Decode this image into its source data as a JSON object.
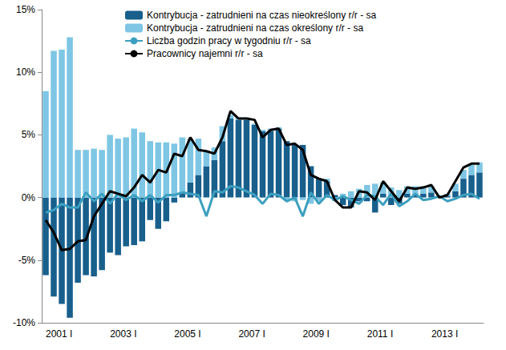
{
  "chart_data": {
    "type": "bar",
    "stacked": true,
    "grid": false,
    "legend": "upper left",
    "categories": [
      "2001 I",
      null,
      null,
      null,
      null,
      null,
      null,
      null,
      "2003 I",
      null,
      null,
      null,
      null,
      null,
      null,
      null,
      "2005 I",
      null,
      null,
      null,
      null,
      null,
      null,
      null,
      "2007 I",
      null,
      null,
      null,
      null,
      null,
      null,
      null,
      "2009 I",
      null,
      null,
      null,
      null,
      null,
      null,
      null,
      "2011 I",
      null,
      null,
      null,
      null,
      null,
      null,
      null,
      "2013 I",
      null,
      null,
      null,
      null,
      null,
      null
    ],
    "ylim": [
      -10,
      15
    ],
    "yticks": [
      {
        "value": -10,
        "label": "-10%"
      },
      {
        "value": -5,
        "label": "-5%"
      },
      {
        "value": 0,
        "label": "0%"
      },
      {
        "value": 5,
        "label": "5%"
      },
      {
        "value": 10,
        "label": "10%"
      },
      {
        "value": 15,
        "label": "15%"
      }
    ],
    "series": [
      {
        "name": "Kontrybucja - zatrudnieni na czas nieokreślony r/r - sa",
        "type": "bar",
        "color": "#185f8c",
        "values": [
          -6.2,
          -7.9,
          -8.5,
          -9.6,
          -6.8,
          -6.2,
          -6.3,
          -5.8,
          -4.4,
          -4.6,
          -3.9,
          -3.8,
          -3.5,
          -1.8,
          -2.5,
          -1.9,
          -0.4,
          0.4,
          1.2,
          1.8,
          2.5,
          3.0,
          4.5,
          6.3,
          6.2,
          6.2,
          5.8,
          5.3,
          5.3,
          5.5,
          4.5,
          4.2,
          4.2,
          2.5,
          1.5,
          1.3,
          0.2,
          -0.6,
          -0.8,
          -0.3,
          -0.3,
          -1.2,
          0.3,
          -0.6,
          -0.5,
          0.3,
          0.2,
          0.3,
          0.4,
          0.0,
          0.1,
          0.5,
          1.5,
          1.8,
          2.0
        ]
      },
      {
        "name": "Kontrybucja - zatrudnieni na czas określony r/r - sa",
        "type": "bar",
        "color": "#7ec6e4",
        "values": [
          8.5,
          11.7,
          11.8,
          12.8,
          3.8,
          3.8,
          3.9,
          3.8,
          5.0,
          4.7,
          4.8,
          5.5,
          5.2,
          4.5,
          4.4,
          4.4,
          4.3,
          4.4,
          3.5,
          2.9,
          1.2,
          1.0,
          1.2,
          0.3,
          0.2,
          0.2,
          0.1,
          0.1,
          0.2,
          0.1,
          -0.2,
          -0.3,
          -0.2,
          -0.5,
          -0.3,
          0.2,
          -0.3,
          0.3,
          0.5,
          0.7,
          1.0,
          1.1,
          0.9,
          0.8,
          0.6,
          0.6,
          0.7,
          0.6,
          0.5,
          0.1,
          0.2,
          0.6,
          0.7,
          0.8,
          0.8
        ]
      },
      {
        "name": "Liczba godzin pracy w tygodniu r/r - sa",
        "type": "line",
        "color": "#3c9fbf",
        "values": [
          -1.2,
          -1.0,
          -0.5,
          -0.8,
          -0.8,
          0.4,
          -0.3,
          0.3,
          -0.5,
          0.3,
          -0.2,
          0.2,
          -0.3,
          0.2,
          -0.4,
          0.2,
          0.2,
          0.4,
          0.3,
          0.2,
          -1.5,
          0.5,
          0.4,
          0.9,
          0.8,
          0.5,
          0.2,
          -0.5,
          0.3,
          0.2,
          -0.3,
          0.0,
          -1.5,
          0.4,
          -0.5,
          0.2,
          -0.2,
          0.1,
          -0.2,
          -0.5,
          0.2,
          0.1,
          -0.6,
          0.3,
          -0.7,
          -0.3,
          0.3,
          -0.2,
          -0.1,
          0.1,
          -0.3,
          -0.1,
          0.2,
          0.3,
          -0.1
        ]
      },
      {
        "name": "Pracownicy najemni r/r - sa",
        "type": "line",
        "color": "#000000",
        "values": [
          -1.8,
          -2.8,
          -4.2,
          -4.1,
          -3.5,
          -3.4,
          -1.5,
          -0.5,
          0.5,
          0.3,
          0.1,
          0.8,
          1.8,
          1.2,
          2.2,
          2.0,
          3.5,
          3.3,
          4.8,
          3.8,
          3.7,
          3.5,
          4.8,
          6.9,
          6.3,
          6.3,
          6.2,
          4.8,
          5.4,
          5.5,
          4.2,
          4.3,
          3.8,
          1.8,
          1.5,
          1.3,
          -0.2,
          -0.8,
          -0.8,
          0.5,
          0.4,
          -0.2,
          1.3,
          0.5,
          -0.3,
          0.8,
          0.7,
          0.8,
          1.0,
          0.0,
          0.2,
          1.3,
          2.4,
          2.7,
          2.7
        ]
      }
    ]
  }
}
